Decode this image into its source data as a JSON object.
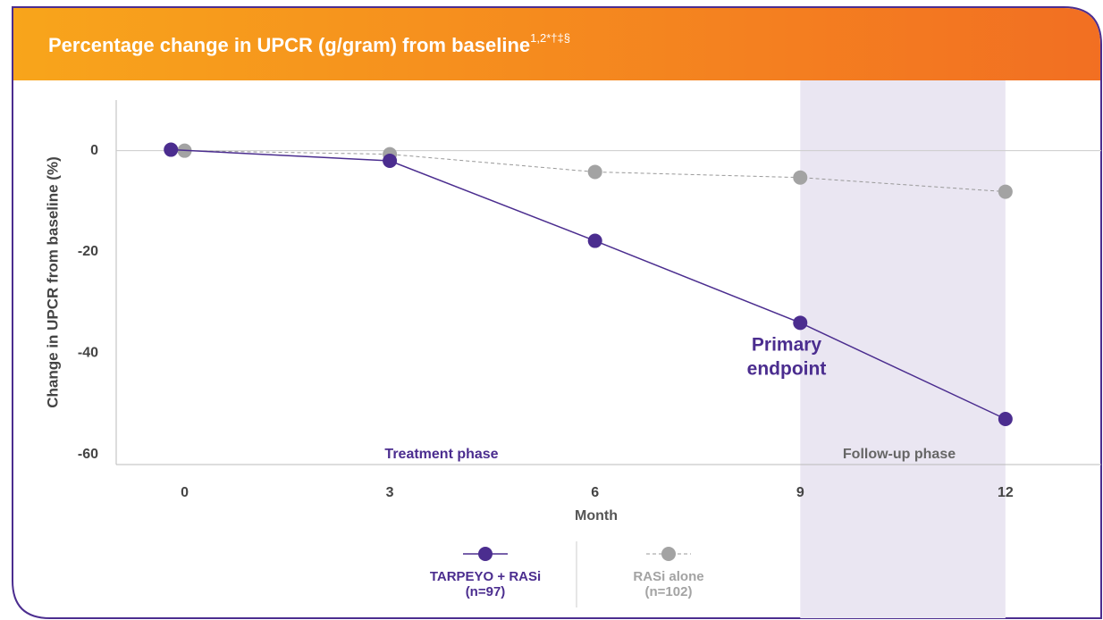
{
  "chart_data": {
    "type": "line",
    "title": "Percentage change in UPCR (g/gram) from baseline",
    "title_superscript": "1,2*†‡§",
    "x_label": "Month",
    "y_label": "Change in UPCR from baseline (%)",
    "xlim": [
      -1,
      13.4
    ],
    "ylim": [
      -62,
      10
    ],
    "xticks": [
      0,
      3,
      6,
      9,
      12
    ],
    "yticks": [
      0,
      -20,
      -40,
      -60
    ],
    "zero_line": true,
    "shaded_xrange": [
      9,
      12
    ],
    "series": [
      {
        "name": "TARPEYO + RASi",
        "n": "(n=97)",
        "color": "#4b2d8f",
        "dashed": false,
        "x": [
          -0.2,
          3,
          6,
          9,
          12
        ],
        "values": [
          0.2,
          -2,
          -17.8,
          -34,
          -53
        ]
      },
      {
        "name": "RASi alone",
        "n": "(n=102)",
        "color": "#a3a3a3",
        "dashed": true,
        "x": [
          0,
          3,
          6,
          9,
          12
        ],
        "values": [
          0,
          -0.7,
          -4.2,
          -5.3,
          -8.1
        ]
      }
    ],
    "annotations": [
      {
        "lines": [
          "Primary",
          "endpoint"
        ]
      },
      {
        "text": "Treatment phase"
      },
      {
        "text": "Follow-up phase"
      }
    ]
  }
}
